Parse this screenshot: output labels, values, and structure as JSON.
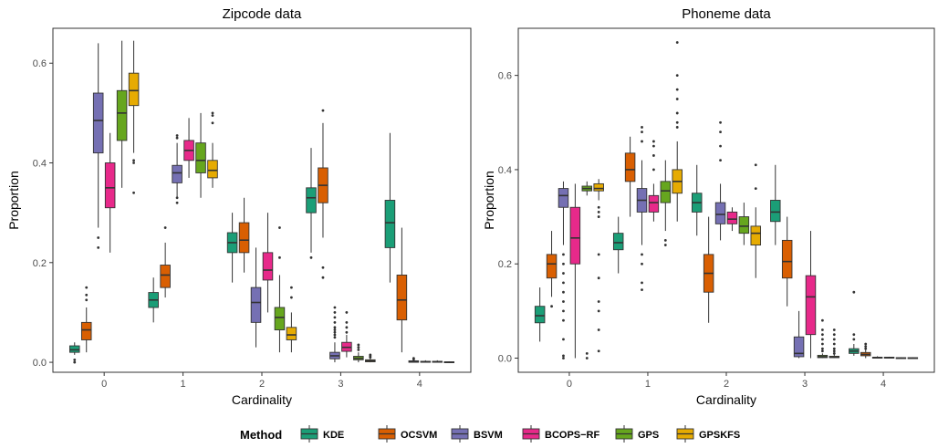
{
  "colors": {
    "KDE": "#1b9e77",
    "OCSVM": "#d95f02",
    "BSVM": "#7570b3",
    "BCOPS-RF": "#e7298a",
    "GPS": "#66a61e",
    "GPSKFS": "#e6ab02"
  },
  "legend": {
    "title": "Method",
    "items": [
      "KDE",
      "OCSVM",
      "BSVM",
      "BCOPS−RF",
      "GPS",
      "GPSKFS"
    ]
  },
  "chart_data": [
    {
      "type": "box",
      "title": "Zipcode data",
      "xlabel": "Cardinality",
      "ylabel": "Proportion",
      "categories": [
        "0",
        "1",
        "2",
        "3",
        "4"
      ],
      "ylim": [
        -0.02,
        0.67
      ],
      "yticks": [
        0.0,
        0.2,
        0.4,
        0.6
      ],
      "ytick_labels": [
        "0.0",
        "0.2",
        "0.4",
        "0.6"
      ],
      "grid": false,
      "series": [
        {
          "name": "KDE",
          "boxes": [
            {
              "min": 0.015,
              "q1": 0.02,
              "median": 0.025,
              "q3": 0.033,
              "max": 0.04,
              "outliers": [
                0.0,
                0.005
              ]
            },
            {
              "min": 0.08,
              "q1": 0.11,
              "median": 0.125,
              "q3": 0.14,
              "max": 0.17,
              "outliers": []
            },
            {
              "min": 0.16,
              "q1": 0.22,
              "median": 0.24,
              "q3": 0.26,
              "max": 0.3,
              "outliers": []
            },
            {
              "min": 0.22,
              "q1": 0.3,
              "median": 0.33,
              "q3": 0.35,
              "max": 0.43,
              "outliers": [
                0.21
              ]
            },
            {
              "min": 0.16,
              "q1": 0.23,
              "median": 0.28,
              "q3": 0.325,
              "max": 0.46,
              "outliers": []
            }
          ]
        },
        {
          "name": "OCSVM",
          "boxes": [
            {
              "min": 0.02,
              "q1": 0.045,
              "median": 0.065,
              "q3": 0.08,
              "max": 0.11,
              "outliers": [
                0.15,
                0.135,
                0.125
              ]
            },
            {
              "min": 0.13,
              "q1": 0.15,
              "median": 0.175,
              "q3": 0.195,
              "max": 0.24,
              "outliers": [
                0.27
              ]
            },
            {
              "min": 0.18,
              "q1": 0.22,
              "median": 0.245,
              "q3": 0.28,
              "max": 0.33,
              "outliers": []
            },
            {
              "min": 0.25,
              "q1": 0.32,
              "median": 0.355,
              "q3": 0.39,
              "max": 0.48,
              "outliers": [
                0.505,
                0.19,
                0.17
              ]
            },
            {
              "min": 0.02,
              "q1": 0.085,
              "median": 0.125,
              "q3": 0.175,
              "max": 0.27,
              "outliers": []
            }
          ]
        },
        {
          "name": "BSVM",
          "boxes": [
            {
              "min": 0.27,
              "q1": 0.42,
              "median": 0.485,
              "q3": 0.54,
              "max": 0.64,
              "outliers": [
                0.25,
                0.23
              ]
            },
            {
              "min": 0.33,
              "q1": 0.36,
              "median": 0.38,
              "q3": 0.395,
              "max": 0.44,
              "outliers": [
                0.455,
                0.45,
                0.33,
                0.32
              ]
            },
            {
              "min": 0.03,
              "q1": 0.08,
              "median": 0.12,
              "q3": 0.15,
              "max": 0.23,
              "outliers": []
            },
            {
              "min": 0.0,
              "q1": 0.007,
              "median": 0.013,
              "q3": 0.02,
              "max": 0.04,
              "outliers": [
                0.05,
                0.055,
                0.06,
                0.065,
                0.07,
                0.08,
                0.09,
                0.1,
                0.11
              ]
            },
            {
              "min": 0.0,
              "q1": 0.0,
              "median": 0.001,
              "q3": 0.003,
              "max": 0.005,
              "outliers": [
                0.006,
                0.008
              ]
            }
          ]
        },
        {
          "name": "BCOPS−RF",
          "boxes": [
            {
              "min": 0.22,
              "q1": 0.31,
              "median": 0.35,
              "q3": 0.4,
              "max": 0.46,
              "outliers": []
            },
            {
              "min": 0.37,
              "q1": 0.405,
              "median": 0.425,
              "q3": 0.445,
              "max": 0.49,
              "outliers": []
            },
            {
              "min": 0.1,
              "q1": 0.165,
              "median": 0.185,
              "q3": 0.22,
              "max": 0.3,
              "outliers": []
            },
            {
              "min": 0.01,
              "q1": 0.022,
              "median": 0.03,
              "q3": 0.04,
              "max": 0.055,
              "outliers": [
                0.06,
                0.07,
                0.08,
                0.1
              ]
            },
            {
              "min": 0.0,
              "q1": 0.0,
              "median": 0.001,
              "q3": 0.002,
              "max": 0.004,
              "outliers": []
            }
          ]
        },
        {
          "name": "GPS",
          "boxes": [
            {
              "min": 0.35,
              "q1": 0.445,
              "median": 0.5,
              "q3": 0.545,
              "max": 0.645,
              "outliers": []
            },
            {
              "min": 0.33,
              "q1": 0.38,
              "median": 0.405,
              "q3": 0.44,
              "max": 0.5,
              "outliers": []
            },
            {
              "min": 0.02,
              "q1": 0.065,
              "median": 0.09,
              "q3": 0.11,
              "max": 0.175,
              "outliers": [
                0.21,
                0.27
              ]
            },
            {
              "min": 0.0,
              "q1": 0.005,
              "median": 0.008,
              "q3": 0.012,
              "max": 0.02,
              "outliers": [
                0.025,
                0.03,
                0.035
              ]
            },
            {
              "min": 0.0,
              "q1": 0.0,
              "median": 0.001,
              "q3": 0.002,
              "max": 0.004,
              "outliers": []
            }
          ]
        },
        {
          "name": "GPSKFS",
          "boxes": [
            {
              "min": 0.42,
              "q1": 0.515,
              "median": 0.545,
              "q3": 0.58,
              "max": 0.645,
              "outliers": [
                0.405,
                0.4,
                0.34
              ]
            },
            {
              "min": 0.35,
              "q1": 0.37,
              "median": 0.385,
              "q3": 0.405,
              "max": 0.44,
              "outliers": [
                0.5,
                0.495,
                0.48
              ]
            },
            {
              "min": 0.02,
              "q1": 0.045,
              "median": 0.055,
              "q3": 0.07,
              "max": 0.1,
              "outliers": [
                0.13,
                0.15
              ]
            },
            {
              "min": 0.0,
              "q1": 0.001,
              "median": 0.003,
              "q3": 0.005,
              "max": 0.008,
              "outliers": [
                0.01,
                0.013,
                0.015
              ]
            },
            {
              "min": 0.0,
              "q1": 0.0,
              "median": 0.0,
              "q3": 0.001,
              "max": 0.002,
              "outliers": []
            }
          ]
        }
      ]
    },
    {
      "type": "box",
      "title": "Phoneme data",
      "xlabel": "Cardinality",
      "ylabel": "Proportion",
      "categories": [
        "0",
        "1",
        "2",
        "3",
        "4"
      ],
      "ylim": [
        -0.03,
        0.7
      ],
      "yticks": [
        0.0,
        0.2,
        0.4,
        0.6
      ],
      "ytick_labels": [
        "0.0",
        "0.2",
        "0.4",
        "0.6"
      ],
      "grid": false,
      "series": [
        {
          "name": "KDE",
          "boxes": [
            {
              "min": 0.035,
              "q1": 0.075,
              "median": 0.09,
              "q3": 0.11,
              "max": 0.15,
              "outliers": []
            },
            {
              "min": 0.18,
              "q1": 0.23,
              "median": 0.245,
              "q3": 0.265,
              "max": 0.3,
              "outliers": []
            },
            {
              "min": 0.26,
              "q1": 0.31,
              "median": 0.33,
              "q3": 0.35,
              "max": 0.41,
              "outliers": []
            },
            {
              "min": 0.24,
              "q1": 0.29,
              "median": 0.31,
              "q3": 0.335,
              "max": 0.41,
              "outliers": []
            },
            {
              "min": 0.005,
              "q1": 0.01,
              "median": 0.015,
              "q3": 0.02,
              "max": 0.03,
              "outliers": [
                0.04,
                0.05,
                0.14
              ]
            }
          ]
        },
        {
          "name": "OCSVM",
          "boxes": [
            {
              "min": 0.13,
              "q1": 0.17,
              "median": 0.2,
              "q3": 0.22,
              "max": 0.27,
              "outliers": [
                0.11
              ]
            },
            {
              "min": 0.3,
              "q1": 0.375,
              "median": 0.4,
              "q3": 0.435,
              "max": 0.47,
              "outliers": []
            },
            {
              "min": 0.075,
              "q1": 0.14,
              "median": 0.18,
              "q3": 0.22,
              "max": 0.3,
              "outliers": []
            },
            {
              "min": 0.11,
              "q1": 0.17,
              "median": 0.205,
              "q3": 0.25,
              "max": 0.3,
              "outliers": []
            },
            {
              "min": 0.0,
              "q1": 0.005,
              "median": 0.008,
              "q3": 0.012,
              "max": 0.018,
              "outliers": [
                0.02,
                0.025,
                0.03
              ]
            }
          ]
        },
        {
          "name": "BSVM",
          "boxes": [
            {
              "min": 0.24,
              "q1": 0.32,
              "median": 0.345,
              "q3": 0.36,
              "max": 0.375,
              "outliers": [
                0.0,
                0.005,
                0.04,
                0.08,
                0.1,
                0.12,
                0.14,
                0.16,
                0.18,
                0.2,
                0.22
              ]
            },
            {
              "min": 0.24,
              "q1": 0.31,
              "median": 0.335,
              "q3": 0.36,
              "max": 0.42,
              "outliers": [
                0.145,
                0.16,
                0.2,
                0.22,
                0.46,
                0.48,
                0.49
              ]
            },
            {
              "min": 0.25,
              "q1": 0.285,
              "median": 0.305,
              "q3": 0.33,
              "max": 0.37,
              "outliers": [
                0.42,
                0.45,
                0.48,
                0.5
              ]
            },
            {
              "min": 0.0,
              "q1": 0.003,
              "median": 0.01,
              "q3": 0.045,
              "max": 0.1,
              "outliers": []
            },
            {
              "min": 0.0,
              "q1": 0.0,
              "median": 0.001,
              "q3": 0.002,
              "max": 0.004,
              "outliers": []
            }
          ]
        },
        {
          "name": "BCOPS−RF",
          "boxes": [
            {
              "min": 0.0,
              "q1": 0.2,
              "median": 0.255,
              "q3": 0.32,
              "max": 0.37,
              "outliers": []
            },
            {
              "min": 0.29,
              "q1": 0.31,
              "median": 0.33,
              "q3": 0.345,
              "max": 0.37,
              "outliers": [
                0.4,
                0.43,
                0.45,
                0.46
              ]
            },
            {
              "min": 0.27,
              "q1": 0.285,
              "median": 0.295,
              "q3": 0.31,
              "max": 0.32,
              "outliers": []
            },
            {
              "min": 0.0,
              "q1": 0.05,
              "median": 0.13,
              "q3": 0.175,
              "max": 0.27,
              "outliers": []
            },
            {
              "min": 0.0,
              "q1": 0.0,
              "median": 0.001,
              "q3": 0.002,
              "max": 0.003,
              "outliers": []
            }
          ]
        },
        {
          "name": "GPS",
          "boxes": [
            {
              "min": 0.345,
              "q1": 0.355,
              "median": 0.36,
              "q3": 0.365,
              "max": 0.375,
              "outliers": [
                0.0,
                0.01
              ]
            },
            {
              "min": 0.27,
              "q1": 0.33,
              "median": 0.355,
              "q3": 0.375,
              "max": 0.42,
              "outliers": [
                0.24,
                0.25
              ]
            },
            {
              "min": 0.24,
              "q1": 0.265,
              "median": 0.28,
              "q3": 0.3,
              "max": 0.33,
              "outliers": []
            },
            {
              "min": 0.0,
              "q1": 0.001,
              "median": 0.003,
              "q3": 0.006,
              "max": 0.01,
              "outliers": [
                0.015,
                0.02,
                0.03,
                0.04,
                0.05,
                0.06,
                0.08
              ]
            },
            {
              "min": 0.0,
              "q1": 0.0,
              "median": 0.0,
              "q3": 0.001,
              "max": 0.002,
              "outliers": []
            }
          ]
        },
        {
          "name": "GPSKFS",
          "boxes": [
            {
              "min": 0.335,
              "q1": 0.355,
              "median": 0.36,
              "q3": 0.37,
              "max": 0.38,
              "outliers": [
                0.015,
                0.06,
                0.1,
                0.12,
                0.17,
                0.22,
                0.3,
                0.31,
                0.32
              ]
            },
            {
              "min": 0.29,
              "q1": 0.35,
              "median": 0.375,
              "q3": 0.4,
              "max": 0.46,
              "outliers": [
                0.49,
                0.5,
                0.52,
                0.55,
                0.57,
                0.6,
                0.67
              ]
            },
            {
              "min": 0.17,
              "q1": 0.24,
              "median": 0.265,
              "q3": 0.28,
              "max": 0.32,
              "outliers": [
                0.36,
                0.41
              ]
            },
            {
              "min": 0.0,
              "q1": 0.001,
              "median": 0.002,
              "q3": 0.004,
              "max": 0.008,
              "outliers": [
                0.01,
                0.015,
                0.02,
                0.03,
                0.04,
                0.05,
                0.06
              ]
            },
            {
              "min": 0.0,
              "q1": 0.0,
              "median": 0.0,
              "q3": 0.001,
              "max": 0.002,
              "outliers": []
            }
          ]
        }
      ]
    }
  ]
}
